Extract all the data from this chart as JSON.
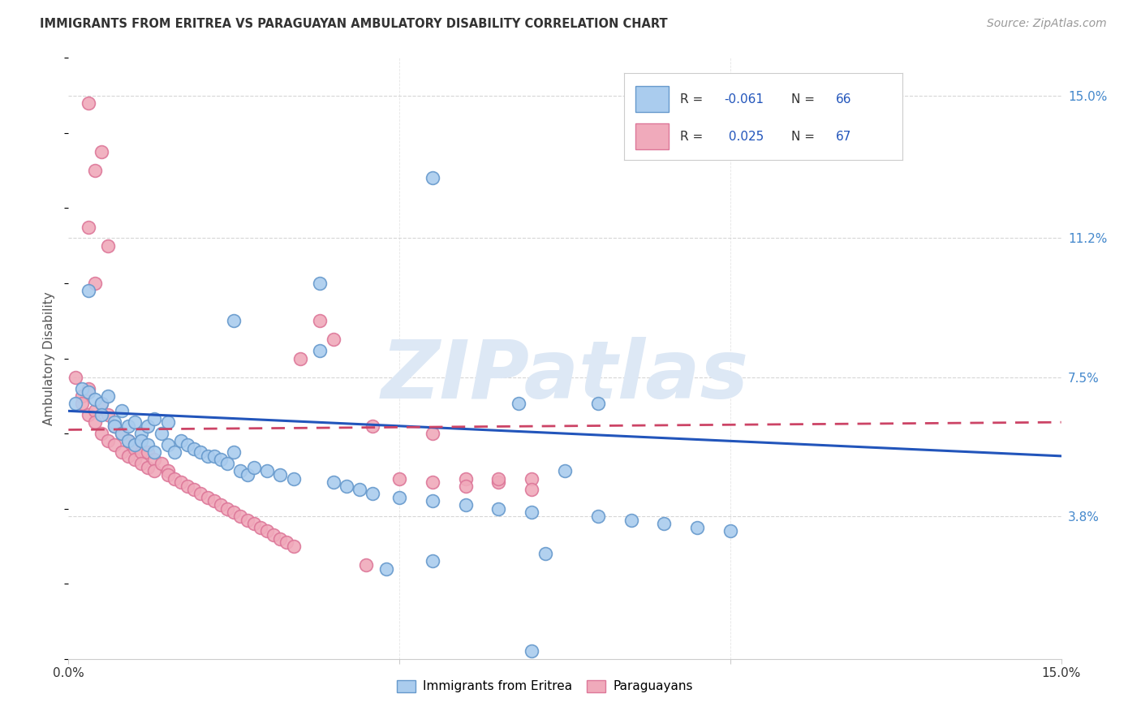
{
  "title": "IMMIGRANTS FROM ERITREA VS PARAGUAYAN AMBULATORY DISABILITY CORRELATION CHART",
  "source": "Source: ZipAtlas.com",
  "ylabel": "Ambulatory Disability",
  "ytick_labels": [
    "3.8%",
    "7.5%",
    "11.2%",
    "15.0%"
  ],
  "ytick_values": [
    0.038,
    0.075,
    0.112,
    0.15
  ],
  "xlim": [
    0.0,
    0.15
  ],
  "ylim": [
    0.0,
    0.16
  ],
  "legend_label_blue": "R = -0.061   N = 66",
  "legend_label_pink": "R =  0.025   N = 67",
  "legend_label_r_blue": "-0.061",
  "legend_label_n_blue": "66",
  "legend_label_r_pink": "0.025",
  "legend_label_n_pink": "67",
  "bottom_legend_blue": "Immigrants from Eritrea",
  "bottom_legend_pink": "Paraguayans",
  "watermark": "ZIPatlas",
  "blue_line_color": "#2255bb",
  "pink_line_color": "#cc4466",
  "blue_scatter_color": "#aaccee",
  "pink_scatter_color": "#f0aabb",
  "blue_scatter_edge": "#6699cc",
  "pink_scatter_edge": "#dd7799",
  "watermark_color": "#dde8f5",
  "background_color": "#ffffff",
  "grid_color": "#cccccc",
  "right_axis_color": "#4488cc",
  "blue_scatter_x": [
    0.001,
    0.002,
    0.003,
    0.004,
    0.005,
    0.005,
    0.006,
    0.007,
    0.007,
    0.008,
    0.008,
    0.009,
    0.009,
    0.01,
    0.01,
    0.011,
    0.011,
    0.012,
    0.012,
    0.013,
    0.013,
    0.014,
    0.015,
    0.015,
    0.016,
    0.017,
    0.018,
    0.019,
    0.02,
    0.021,
    0.022,
    0.023,
    0.024,
    0.025,
    0.026,
    0.027,
    0.028,
    0.03,
    0.032,
    0.034,
    0.003,
    0.038,
    0.04,
    0.042,
    0.044,
    0.046,
    0.05,
    0.055,
    0.06,
    0.065,
    0.07,
    0.075,
    0.08,
    0.085,
    0.09,
    0.095,
    0.1,
    0.068,
    0.025,
    0.038,
    0.08,
    0.055,
    0.048,
    0.072,
    0.07,
    0.055
  ],
  "blue_scatter_y": [
    0.068,
    0.072,
    0.071,
    0.069,
    0.068,
    0.065,
    0.07,
    0.063,
    0.062,
    0.066,
    0.06,
    0.062,
    0.058,
    0.063,
    0.057,
    0.06,
    0.058,
    0.062,
    0.057,
    0.064,
    0.055,
    0.06,
    0.063,
    0.057,
    0.055,
    0.058,
    0.057,
    0.056,
    0.055,
    0.054,
    0.054,
    0.053,
    0.052,
    0.055,
    0.05,
    0.049,
    0.051,
    0.05,
    0.049,
    0.048,
    0.098,
    0.082,
    0.047,
    0.046,
    0.045,
    0.044,
    0.043,
    0.042,
    0.041,
    0.04,
    0.039,
    0.05,
    0.038,
    0.037,
    0.036,
    0.035,
    0.034,
    0.068,
    0.09,
    0.1,
    0.068,
    0.026,
    0.024,
    0.028,
    0.002,
    0.128
  ],
  "pink_scatter_x": [
    0.001,
    0.002,
    0.002,
    0.003,
    0.003,
    0.004,
    0.004,
    0.005,
    0.005,
    0.006,
    0.006,
    0.007,
    0.007,
    0.008,
    0.008,
    0.009,
    0.009,
    0.01,
    0.01,
    0.011,
    0.011,
    0.012,
    0.012,
    0.013,
    0.013,
    0.014,
    0.015,
    0.015,
    0.016,
    0.017,
    0.018,
    0.019,
    0.02,
    0.021,
    0.022,
    0.023,
    0.024,
    0.025,
    0.026,
    0.027,
    0.028,
    0.029,
    0.03,
    0.031,
    0.032,
    0.033,
    0.034,
    0.003,
    0.005,
    0.004,
    0.003,
    0.006,
    0.004,
    0.046,
    0.055,
    0.06,
    0.065,
    0.07,
    0.038,
    0.04,
    0.035,
    0.045,
    0.05,
    0.055,
    0.06,
    0.065,
    0.07
  ],
  "pink_scatter_y": [
    0.075,
    0.07,
    0.068,
    0.072,
    0.065,
    0.066,
    0.063,
    0.068,
    0.06,
    0.065,
    0.058,
    0.062,
    0.057,
    0.06,
    0.055,
    0.058,
    0.054,
    0.056,
    0.053,
    0.055,
    0.052,
    0.055,
    0.051,
    0.053,
    0.05,
    0.052,
    0.05,
    0.049,
    0.048,
    0.047,
    0.046,
    0.045,
    0.044,
    0.043,
    0.042,
    0.041,
    0.04,
    0.039,
    0.038,
    0.037,
    0.036,
    0.035,
    0.034,
    0.033,
    0.032,
    0.031,
    0.03,
    0.148,
    0.135,
    0.13,
    0.115,
    0.11,
    0.1,
    0.062,
    0.06,
    0.048,
    0.047,
    0.048,
    0.09,
    0.085,
    0.08,
    0.025,
    0.048,
    0.047,
    0.046,
    0.048,
    0.045
  ],
  "blue_line_x0": 0.0,
  "blue_line_x1": 0.15,
  "blue_line_y0": 0.066,
  "blue_line_y1": 0.054,
  "pink_line_x0": 0.0,
  "pink_line_x1": 0.15,
  "pink_line_y0": 0.061,
  "pink_line_y1": 0.063
}
